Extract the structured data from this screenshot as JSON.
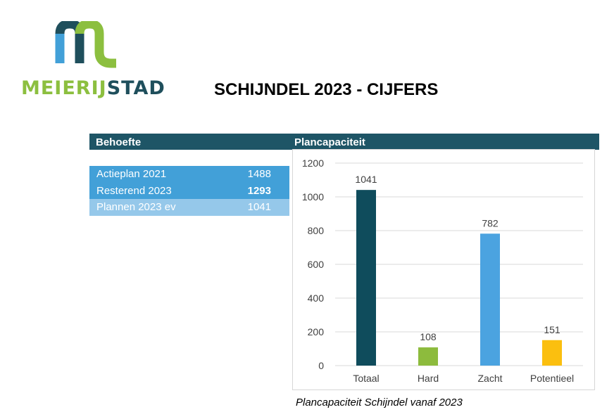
{
  "logo": {
    "name_part1": "MEIERIJ",
    "name_part2": "STAD"
  },
  "page_title": "SCHIJNDEL 2023 - CIJFERS",
  "behoefte": {
    "header": "Behoefte",
    "rows": [
      {
        "label": "Actieplan 2021",
        "value": "1488"
      },
      {
        "label": "Resterend 2023",
        "value": "1293"
      },
      {
        "label": "Plannen 2023 ev",
        "value": "1041"
      }
    ]
  },
  "plancapaciteit": {
    "header": "Plancapaciteit"
  },
  "caption": "Plancapaciteit Schijndel vanaf 2023",
  "colors": {
    "dark_teal": "#0f4c5c",
    "green": "#8dbb3d",
    "blue": "#4ba3e0",
    "yellow": "#fbbf0f",
    "header_bar": "#1e5566"
  },
  "chart_data": {
    "type": "bar",
    "categories": [
      "Totaal",
      "Hard",
      "Zacht",
      "Potentieel"
    ],
    "values": [
      1041,
      108,
      782,
      151
    ],
    "bar_colors": [
      "#0f4c5c",
      "#8dbb3d",
      "#4ba3e0",
      "#fbbf0f"
    ],
    "ylim": [
      0,
      1200
    ],
    "yticks": [
      0,
      200,
      400,
      600,
      800,
      1000,
      1200
    ],
    "grid": true,
    "data_labels": true,
    "legend": false
  }
}
